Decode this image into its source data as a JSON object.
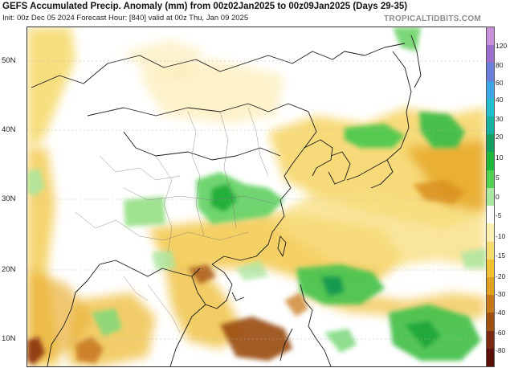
{
  "header": {
    "title": "GEFS Accumulated Precip. Anomaly (mm) from 00z02Jan2025 to 00z09Jan2025 (Days 29-35)",
    "subtitle": "Init: 00z Dec 05 2024   Forecast Hour: [840]   valid at 00z Thu, Jan 09 2025",
    "brand": "TROPICALTIDBITS.COM"
  },
  "map": {
    "lat_labels": [
      "50N",
      "40N",
      "30N",
      "20N",
      "10N"
    ]
  },
  "colorbar": {
    "labels": [
      "120",
      "80",
      "60",
      "40",
      "30",
      "20",
      "10",
      "5",
      "0",
      "-5",
      "-10",
      "-15",
      "-20",
      "-30",
      "-40",
      "-60",
      "-80"
    ],
    "segment_colors": [
      "#c890d8",
      "#9c6ed0",
      "#6a7ee0",
      "#3fa5e8",
      "#20c0d0",
      "#18b0a0",
      "#16a060",
      "#20b838",
      "#52d052",
      "#a8e8a0",
      "#ffffff",
      "#fff2b0",
      "#f8dc70",
      "#f0c030",
      "#e0a020",
      "#c87818",
      "#a05010",
      "#7a2a10",
      "#5a1008"
    ]
  }
}
